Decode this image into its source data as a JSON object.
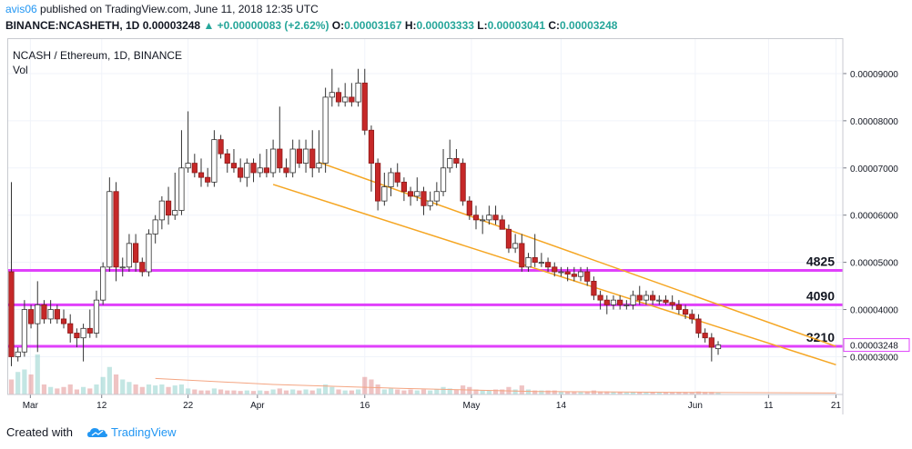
{
  "header": {
    "user": "avis06",
    "published_text": "published on TradingView.com, June 11, 2018 12:35 UTC",
    "symbol": "BINANCE:NCASHETH, 1D",
    "last": "0.00003248",
    "change": "+0.00000083 (+2.62%)",
    "o_label": "O:",
    "o_value": "0.00003167",
    "h_label": "H:",
    "h_value": "0.00003333",
    "l_label": "L:",
    "l_value": "0.00003041",
    "c_label": "C:",
    "c_value": "0.00003248"
  },
  "legend": {
    "title": "NCASH / Ethereum, 1D, BINANCE",
    "volume_label": "Vol"
  },
  "footer": {
    "created_with": "Created with",
    "brand": "TradingView",
    "logo_icon": "tradingview-cloud-icon"
  },
  "colors": {
    "up": "#26a69a",
    "down": "#c62828",
    "level": "#e040fb",
    "channel": "#f5a623",
    "volume_ma": "#f4a582"
  },
  "chart_data": {
    "type": "candlestick",
    "x_ticks": [
      "Mar",
      "12",
      "22",
      "Apr",
      "16",
      "May",
      "14",
      "Jun",
      "11",
      "21"
    ],
    "y_ticks": [
      "0.00009000",
      "0.00008000",
      "0.00007000",
      "0.00006000",
      "0.00005000",
      "0.00004000",
      "0.00003000"
    ],
    "ylim": [
      2.2e-05,
      9.75e-05
    ],
    "last_price_label": "0.00003248",
    "horizontal_levels": [
      {
        "label": "4825",
        "value": 4.83e-05
      },
      {
        "label": "4090",
        "value": 4.1e-05
      },
      {
        "label": "3210",
        "value": 3.22e-05
      }
    ],
    "channel": {
      "upper": [
        [
          47,
          7.12e-05
        ],
        [
          126,
          3.22e-05
        ]
      ],
      "lower": [
        [
          40,
          6.65e-05
        ],
        [
          126,
          2.83e-05
        ]
      ]
    },
    "volume_ma": [
      [
        22,
        0.32
      ],
      [
        40,
        0.2
      ],
      [
        60,
        0.12
      ],
      [
        80,
        0.06
      ],
      [
        104,
        0.04
      ],
      [
        126,
        0.03
      ]
    ],
    "candles": [
      [
        4.8e-05,
        6.7e-05,
        2.8e-05,
        3e-05,
        0.3
      ],
      [
        3e-05,
        3.2e-05,
        2.9e-05,
        3.1e-05,
        0.45
      ],
      [
        3.1e-05,
        4.2e-05,
        3e-05,
        4e-05,
        0.5
      ],
      [
        4e-05,
        4.1e-05,
        3.6e-05,
        3.7e-05,
        0.4
      ],
      [
        3.7e-05,
        4.6e-05,
        3.1e-05,
        4.1e-05,
        0.8
      ],
      [
        4.1e-05,
        4.2e-05,
        3.7e-05,
        3.8e-05,
        0.2
      ],
      [
        3.8e-05,
        4.2e-05,
        3.7e-05,
        4e-05,
        0.15
      ],
      [
        4e-05,
        4.1e-05,
        3.7e-05,
        3.8e-05,
        0.12
      ],
      [
        3.8e-05,
        4e-05,
        3.6e-05,
        3.7e-05,
        0.15
      ],
      [
        3.7e-05,
        3.9e-05,
        3.3e-05,
        3.5e-05,
        0.2
      ],
      [
        3.5e-05,
        3.6e-05,
        3.2e-05,
        3.4e-05,
        0.1
      ],
      [
        3.4e-05,
        3.7e-05,
        2.9e-05,
        3.6e-05,
        0.15
      ],
      [
        3.6e-05,
        4e-05,
        3.4e-05,
        3.5e-05,
        0.12
      ],
      [
        3.5e-05,
        4.4e-05,
        3.4e-05,
        4.2e-05,
        0.2
      ],
      [
        4.2e-05,
        5e-05,
        4.1e-05,
        4.9e-05,
        0.35
      ],
      [
        4.9e-05,
        6.8e-05,
        4.8e-05,
        6.5e-05,
        0.55
      ],
      [
        6.5e-05,
        6.7e-05,
        4.6e-05,
        4.9e-05,
        0.4
      ],
      [
        4.9e-05,
        5.1e-05,
        4.7e-05,
        4.9e-05,
        0.3
      ],
      [
        4.9e-05,
        5.6e-05,
        4.8e-05,
        5.4e-05,
        0.25
      ],
      [
        5.4e-05,
        5.6e-05,
        4.8e-05,
        5e-05,
        0.2
      ],
      [
        5e-05,
        5.1e-05,
        4.7e-05,
        4.8e-05,
        0.15
      ],
      [
        4.8e-05,
        5.7e-05,
        4.7e-05,
        5.6e-05,
        0.2
      ],
      [
        5.6e-05,
        6e-05,
        5.4e-05,
        5.9e-05,
        0.18
      ],
      [
        5.9e-05,
        6.4e-05,
        5.7e-05,
        6.3e-05,
        0.2
      ],
      [
        6.3e-05,
        6.6e-05,
        5.8e-05,
        6e-05,
        0.15
      ],
      [
        6e-05,
        6.9e-05,
        5.9e-05,
        6.1e-05,
        0.18
      ],
      [
        6.1e-05,
        7.8e-05,
        6e-05,
        7e-05,
        0.2
      ],
      [
        7e-05,
        8.2e-05,
        6.9e-05,
        7.1e-05,
        0.12
      ],
      [
        7.1e-05,
        7.3e-05,
        6.8e-05,
        6.9e-05,
        0.1
      ],
      [
        6.9e-05,
        7.2e-05,
        6.6e-05,
        6.8e-05,
        0.08
      ],
      [
        6.8e-05,
        7e-05,
        6.6e-05,
        6.7e-05,
        0.08
      ],
      [
        6.7e-05,
        7.8e-05,
        6.6e-05,
        7.6e-05,
        0.12
      ],
      [
        7.6e-05,
        7.7e-05,
        7.2e-05,
        7.3e-05,
        0.1
      ],
      [
        7.3e-05,
        7.4e-05,
        6.9e-05,
        7.1e-05,
        0.08
      ],
      [
        7.1e-05,
        7.4e-05,
        6.9e-05,
        7e-05,
        0.08
      ],
      [
        7e-05,
        7.2e-05,
        6.7e-05,
        6.8e-05,
        0.07
      ],
      [
        6.8e-05,
        7.2e-05,
        6.6e-05,
        7.1e-05,
        0.08
      ],
      [
        7.1e-05,
        7.2e-05,
        6.7e-05,
        6.9e-05,
        0.07
      ],
      [
        6.9e-05,
        7.3e-05,
        6.8e-05,
        7e-05,
        0.08
      ],
      [
        7e-05,
        7.4e-05,
        6.8e-05,
        6.9e-05,
        0.07
      ],
      [
        6.9e-05,
        7.6e-05,
        6.8e-05,
        7.4e-05,
        0.1
      ],
      [
        7.4e-05,
        8.3e-05,
        6.9e-05,
        7e-05,
        0.12
      ],
      [
        7e-05,
        7.2e-05,
        6.8e-05,
        6.9e-05,
        0.08
      ],
      [
        6.9e-05,
        7.6e-05,
        6.8e-05,
        7.4e-05,
        0.1
      ],
      [
        7.4e-05,
        7.6e-05,
        7e-05,
        7.1e-05,
        0.08
      ],
      [
        7.1e-05,
        7.6e-05,
        6.9e-05,
        7.4e-05,
        0.1
      ],
      [
        7.4e-05,
        7.8e-05,
        6.8e-05,
        7e-05,
        0.08
      ],
      [
        7e-05,
        7.8e-05,
        6.9e-05,
        7.1e-05,
        0.12
      ],
      [
        7.1e-05,
        8.7e-05,
        6.9e-05,
        8.5e-05,
        0.2
      ],
      [
        8.5e-05,
        9.1e-05,
        8.3e-05,
        8.6e-05,
        0.15
      ],
      [
        8.6e-05,
        8.7e-05,
        8.3e-05,
        8.4e-05,
        0.1
      ],
      [
        8.4e-05,
        8.8e-05,
        8.3e-05,
        8.5e-05,
        0.08
      ],
      [
        8.5e-05,
        8.8e-05,
        8.3e-05,
        8.4e-05,
        0.08
      ],
      [
        8.4e-05,
        9.1e-05,
        8.3e-05,
        8.8e-05,
        0.1
      ],
      [
        8.8e-05,
        9.1e-05,
        7.7e-05,
        7.8e-05,
        0.35
      ],
      [
        7.8e-05,
        7.9e-05,
        6.5e-05,
        7.1e-05,
        0.3
      ],
      [
        7.1e-05,
        7.2e-05,
        6.1e-05,
        6.3e-05,
        0.2
      ],
      [
        6.3e-05,
        6.9e-05,
        6.2e-05,
        6.6e-05,
        0.1
      ],
      [
        6.6e-05,
        7e-05,
        6.4e-05,
        6.9e-05,
        0.12
      ],
      [
        6.9e-05,
        7.1e-05,
        6.6e-05,
        6.7e-05,
        0.1
      ],
      [
        6.7e-05,
        6.8e-05,
        6.3e-05,
        6.5e-05,
        0.08
      ],
      [
        6.5e-05,
        6.6e-05,
        6.2e-05,
        6.4e-05,
        0.1
      ],
      [
        6.4e-05,
        6.8e-05,
        6.3e-05,
        6.5e-05,
        0.08
      ],
      [
        6.5e-05,
        6.6e-05,
        6e-05,
        6.2e-05,
        0.1
      ],
      [
        6.2e-05,
        6.5e-05,
        6.1e-05,
        6.3e-05,
        0.08
      ],
      [
        6.3e-05,
        6.7e-05,
        6.2e-05,
        6.5e-05,
        0.1
      ],
      [
        6.5e-05,
        7.4e-05,
        6.4e-05,
        7e-05,
        0.15
      ],
      [
        7e-05,
        7.6e-05,
        6.9e-05,
        7.2e-05,
        0.12
      ],
      [
        7.2e-05,
        7.4e-05,
        7e-05,
        7.1e-05,
        0.1
      ],
      [
        7.1e-05,
        7.2e-05,
        6.2e-05,
        6.3e-05,
        0.18
      ],
      [
        6.3e-05,
        6.4e-05,
        5.9e-05,
        6e-05,
        0.15
      ],
      [
        6e-05,
        6.2e-05,
        5.7e-05,
        5.9e-05,
        0.1
      ],
      [
        5.9e-05,
        6e-05,
        5.6e-05,
        5.9e-05,
        0.08
      ],
      [
        5.9e-05,
        6.2e-05,
        5.8e-05,
        6e-05,
        0.08
      ],
      [
        6e-05,
        6.2e-05,
        5.8e-05,
        5.9e-05,
        0.1
      ],
      [
        5.9e-05,
        6e-05,
        5.7e-05,
        5.7e-05,
        0.1
      ],
      [
        5.7e-05,
        5.8e-05,
        5.2e-05,
        5.3e-05,
        0.15
      ],
      [
        5.3e-05,
        5.6e-05,
        5.2e-05,
        5.4e-05,
        0.1
      ],
      [
        5.4e-05,
        5.6e-05,
        4.8e-05,
        4.9e-05,
        0.18
      ],
      [
        4.9e-05,
        5.2e-05,
        4.8e-05,
        5.1e-05,
        0.1
      ],
      [
        5.1e-05,
        5.6e-05,
        4.9e-05,
        5e-05,
        0.08
      ],
      [
        5e-05,
        5.2e-05,
        4.9e-05,
        5e-05,
        0.08
      ],
      [
        5e-05,
        5.1e-05,
        4.8e-05,
        4.9e-05,
        0.08
      ],
      [
        4.9e-05,
        5e-05,
        4.7e-05,
        4.8e-05,
        0.08
      ],
      [
        4.8e-05,
        4.9e-05,
        4.7e-05,
        4.8e-05,
        0.06
      ],
      [
        4.8e-05,
        4.9e-05,
        4.6e-05,
        4.75e-05,
        0.06
      ],
      [
        4.75e-05,
        4.9e-05,
        4.6e-05,
        4.7e-05,
        0.06
      ],
      [
        4.7e-05,
        4.9e-05,
        4.6e-05,
        4.8e-05,
        0.06
      ],
      [
        4.8e-05,
        4.9e-05,
        4.5e-05,
        4.6e-05,
        0.06
      ],
      [
        4.6e-05,
        4.7e-05,
        4.2e-05,
        4.3e-05,
        0.08
      ],
      [
        4.3e-05,
        4.4e-05,
        4e-05,
        4.2e-05,
        0.06
      ],
      [
        4.2e-05,
        4.3e-05,
        3.9e-05,
        4.1e-05,
        0.06
      ],
      [
        4.1e-05,
        4.3e-05,
        4e-05,
        4.2e-05,
        0.05
      ],
      [
        4.2e-05,
        4.3e-05,
        4e-05,
        4.1e-05,
        0.05
      ],
      [
        4.1e-05,
        4.2e-05,
        4e-05,
        4.1e-05,
        0.04
      ],
      [
        4.1e-05,
        4.4e-05,
        4e-05,
        4.3e-05,
        0.05
      ],
      [
        4.3e-05,
        4.5e-05,
        4.1e-05,
        4.2e-05,
        0.05
      ],
      [
        4.2e-05,
        4.4e-05,
        4.1e-05,
        4.3e-05,
        0.04
      ],
      [
        4.3e-05,
        4.4e-05,
        4.1e-05,
        4.2e-05,
        0.04
      ],
      [
        4.2e-05,
        4.3e-05,
        4.1e-05,
        4.2e-05,
        0.04
      ],
      [
        4.2e-05,
        4.3e-05,
        4.1e-05,
        4.15e-05,
        0.04
      ],
      [
        4.15e-05,
        4.3e-05,
        4e-05,
        4.1e-05,
        0.04
      ],
      [
        4.1e-05,
        4.2e-05,
        3.9e-05,
        4e-05,
        0.05
      ],
      [
        4e-05,
        4.1e-05,
        3.8e-05,
        3.9e-05,
        0.05
      ],
      [
        3.9e-05,
        4e-05,
        3.7e-05,
        3.8e-05,
        0.05
      ],
      [
        3.8e-05,
        3.9e-05,
        3.4e-05,
        3.5e-05,
        0.06
      ],
      [
        3.5e-05,
        3.6e-05,
        3.3e-05,
        3.4e-05,
        0.05
      ],
      [
        3.4e-05,
        3.5e-05,
        2.9e-05,
        3.2e-05,
        0.05
      ],
      [
        3.17e-05,
        3.33e-05,
        3.04e-05,
        3.25e-05,
        0.04
      ]
    ]
  }
}
